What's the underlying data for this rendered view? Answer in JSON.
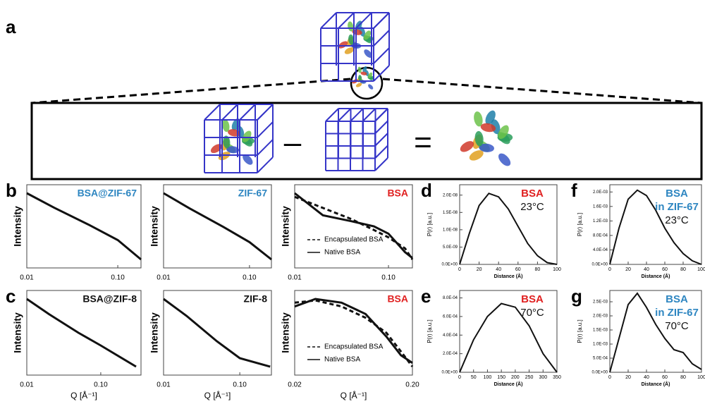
{
  "schematic": {
    "panel_label": "a",
    "minus": "–",
    "equals": "="
  },
  "chart_data": [
    {
      "type": "line",
      "panel_label": "b",
      "y_label": "Intensity",
      "log_x": true,
      "annotations": [
        {
          "text": "BSA@ZIF-67",
          "color": "#2e86c1"
        }
      ],
      "xlim": [
        0.01,
        0.18
      ],
      "xticks": [
        0.01,
        {
          "value": 0.1,
          "label": "0.10"
        }
      ],
      "x": [
        0.01,
        0.02,
        0.05,
        0.1,
        0.18
      ],
      "series": [
        {
          "color": "#111111",
          "style": "solid",
          "values": [
            1,
            0.82,
            0.6,
            0.42,
            0.18
          ]
        }
      ]
    },
    {
      "type": "line",
      "y_label": "Intensity",
      "log_x": true,
      "annotations": [
        {
          "text": "ZIF-67",
          "color": "#2e86c1"
        }
      ],
      "xlim": [
        0.01,
        0.18
      ],
      "xticks": [
        0.01,
        {
          "value": 0.1,
          "label": "0.10"
        }
      ],
      "x": [
        0.01,
        0.02,
        0.05,
        0.1,
        0.18
      ],
      "series": [
        {
          "color": "#111111",
          "style": "solid",
          "values": [
            1,
            0.8,
            0.55,
            0.35,
            0.12
          ]
        }
      ]
    },
    {
      "type": "line",
      "y_label": "Intensity",
      "log_x": true,
      "legend": "bottom-right",
      "annotations": [
        {
          "text": "BSA",
          "color": "#e02020"
        }
      ],
      "xlim": [
        0.01,
        0.18
      ],
      "xticks": [
        0.01,
        {
          "value": 0.1,
          "label": "0.10"
        }
      ],
      "x": [
        0.01,
        0.02,
        0.04,
        0.07,
        0.1,
        0.15,
        0.18
      ],
      "series": [
        {
          "name": "Encapsulated BSA",
          "color": "#111111",
          "style": "dashed",
          "values": [
            0.95,
            0.8,
            0.65,
            0.5,
            0.4,
            0.25,
            0.1
          ]
        },
        {
          "name": "Native BSA",
          "color": "#111111",
          "style": "solid",
          "values": [
            1,
            0.7,
            0.62,
            0.55,
            0.45,
            0.2,
            0.12
          ]
        }
      ]
    },
    {
      "type": "line",
      "panel_label": "c",
      "y_label": "Intensity",
      "x_label": "Q [Å⁻¹]",
      "log_x": true,
      "annotations": [
        {
          "text": "BSA@ZIF-8",
          "color": "#111111"
        }
      ],
      "xlim": [
        0.01,
        0.35
      ],
      "xticks": [
        0.01,
        {
          "value": 0.1,
          "label": "0.10"
        }
      ],
      "x": [
        0.01,
        0.02,
        0.05,
        0.1,
        0.3
      ],
      "series": [
        {
          "color": "#111111",
          "style": "solid",
          "values": [
            1,
            0.82,
            0.6,
            0.45,
            0.2
          ]
        }
      ]
    },
    {
      "type": "line",
      "y_label": "Intensity",
      "x_label": "Q [Å⁻¹]",
      "log_x": true,
      "annotations": [
        {
          "text": "ZIF-8",
          "color": "#111111"
        }
      ],
      "xlim": [
        0.01,
        0.26
      ],
      "xticks": [
        0.01,
        {
          "value": 0.1,
          "label": "0.10"
        }
      ],
      "x": [
        0.01,
        0.02,
        0.05,
        0.1,
        0.25
      ],
      "series": [
        {
          "color": "#111111",
          "style": "solid",
          "values": [
            1,
            0.8,
            0.5,
            0.3,
            0.2
          ]
        }
      ]
    },
    {
      "type": "line",
      "y_label": "Intensity",
      "x_label": "Q [Å⁻¹]",
      "log_x": true,
      "legend": "bottom-right",
      "annotations": [
        {
          "text": "BSA",
          "color": "#e02020"
        }
      ],
      "xlim": [
        0.02,
        0.2
      ],
      "xticks": [
        0.02,
        {
          "value": 0.2,
          "label": "0.20"
        }
      ],
      "x": [
        0.02,
        0.03,
        0.05,
        0.08,
        0.12,
        0.16,
        0.2
      ],
      "series": [
        {
          "name": "Encapsulated BSA",
          "color": "#111111",
          "style": "dashed",
          "values": [
            0.95,
            0.98,
            0.9,
            0.75,
            0.55,
            0.3,
            0.1
          ]
        },
        {
          "name": "Native BSA",
          "color": "#111111",
          "style": "solid",
          "values": [
            0.9,
            1,
            0.95,
            0.8,
            0.5,
            0.25,
            0.15
          ]
        }
      ]
    },
    {
      "type": "line",
      "panel_label": "d",
      "y_label": "P(r) [a.u.]",
      "x_label": "Distance (Å)",
      "annotations": [
        {
          "text": "BSA",
          "color": "#e02020"
        },
        {
          "text": "23°C",
          "color": "#111111"
        }
      ],
      "xlim": [
        0,
        100
      ],
      "xticks": [
        0,
        20,
        40,
        60,
        80,
        100
      ],
      "ylim": [
        0,
        2.3e-08
      ],
      "yticks": [
        {
          "value": 0,
          "label": "0.0E+00"
        },
        {
          "value": 5e-09,
          "label": "5.0E-09"
        },
        {
          "value": 1e-08,
          "label": "1.0E-08"
        },
        {
          "value": 1.5e-08,
          "label": "1.5E-08"
        },
        {
          "value": 2e-08,
          "label": "2.0E-08"
        }
      ],
      "x": [
        0,
        10,
        20,
        30,
        40,
        50,
        60,
        70,
        80,
        90,
        100
      ],
      "series": [
        {
          "color": "#111111",
          "style": "solid",
          "values": [
            0,
            9e-09,
            1.7e-08,
            2.05e-08,
            1.95e-08,
            1.6e-08,
            1.1e-08,
            6e-09,
            2.5e-09,
            5e-10,
            0
          ]
        }
      ]
    },
    {
      "type": "line",
      "panel_label": "e",
      "y_label": "P(r) [a.u.]",
      "x_label": "Distance (Å)",
      "annotations": [
        {
          "text": "BSA",
          "color": "#e02020"
        },
        {
          "text": "70°C",
          "color": "#111111"
        }
      ],
      "xlim": [
        0,
        350
      ],
      "xticks": [
        0,
        50,
        100,
        150,
        200,
        250,
        300,
        350
      ],
      "ylim": [
        0,
        0.00088
      ],
      "yticks": [
        {
          "value": 0,
          "label": "0.0E+00"
        },
        {
          "value": 0.0002,
          "label": "2.0E-04"
        },
        {
          "value": 0.0004,
          "label": "4.0E-04"
        },
        {
          "value": 0.0006,
          "label": "6.0E-04"
        },
        {
          "value": 0.0008,
          "label": "8.0E-04"
        }
      ],
      "x": [
        0,
        50,
        100,
        150,
        200,
        250,
        300,
        350
      ],
      "series": [
        {
          "color": "#111111",
          "style": "solid",
          "values": [
            0,
            0.00035,
            0.0006,
            0.00074,
            0.0007,
            0.0005,
            0.0002,
            0
          ]
        }
      ]
    },
    {
      "type": "line",
      "panel_label": "f",
      "y_label": "P(r) [a.u.]",
      "x_label": "Distance (Å)",
      "annotations": [
        {
          "text": "BSA",
          "color": "#2e86c1"
        },
        {
          "text": "in ZIF-67",
          "color": "#2e86c1"
        },
        {
          "text": "23°C",
          "color": "#111111"
        }
      ],
      "xlim": [
        0,
        100
      ],
      "xticks": [
        0,
        20,
        40,
        60,
        80,
        100
      ],
      "ylim": [
        0,
        0.0022
      ],
      "yticks": [
        {
          "value": 0,
          "label": "0.0E+00"
        },
        {
          "value": 0.0004,
          "label": "4.0E-04"
        },
        {
          "value": 0.0008,
          "label": "8.0E-04"
        },
        {
          "value": 0.0012,
          "label": "1.2E-03"
        },
        {
          "value": 0.0016,
          "label": "1.6E-03"
        },
        {
          "value": 0.002,
          "label": "2.0E-03"
        }
      ],
      "x": [
        0,
        10,
        20,
        30,
        40,
        50,
        60,
        70,
        80,
        90,
        100
      ],
      "series": [
        {
          "color": "#111111",
          "style": "solid",
          "values": [
            0,
            0.001,
            0.0018,
            0.00205,
            0.0019,
            0.0015,
            0.001,
            0.0006,
            0.0003,
            0.0001,
            0
          ]
        }
      ]
    },
    {
      "type": "line",
      "panel_label": "g",
      "y_label": "P(r) [a.u.]",
      "x_label": "Distance (Å)",
      "annotations": [
        {
          "text": "BSA",
          "color": "#2e86c1"
        },
        {
          "text": "in ZIF-67",
          "color": "#2e86c1"
        },
        {
          "text": "70°C",
          "color": "#111111"
        }
      ],
      "xlim": [
        0,
        100
      ],
      "xticks": [
        0,
        20,
        40,
        60,
        80,
        100
      ],
      "ylim": [
        0,
        0.0029
      ],
      "yticks": [
        {
          "value": 0,
          "label": "0.0E+00"
        },
        {
          "value": 0.0005,
          "label": "5.0E-04"
        },
        {
          "value": 0.001,
          "label": "1.0E-03"
        },
        {
          "value": 0.0015,
          "label": "1.5E-03"
        },
        {
          "value": 0.002,
          "label": "2.0E-03"
        },
        {
          "value": 0.0025,
          "label": "2.5E-03"
        }
      ],
      "x": [
        0,
        10,
        20,
        30,
        40,
        50,
        60,
        70,
        80,
        90,
        100
      ],
      "series": [
        {
          "color": "#111111",
          "style": "solid",
          "values": [
            0,
            0.0012,
            0.0024,
            0.0028,
            0.0023,
            0.0017,
            0.0012,
            0.0008,
            0.0007,
            0.0003,
            0.0001
          ]
        }
      ]
    }
  ]
}
